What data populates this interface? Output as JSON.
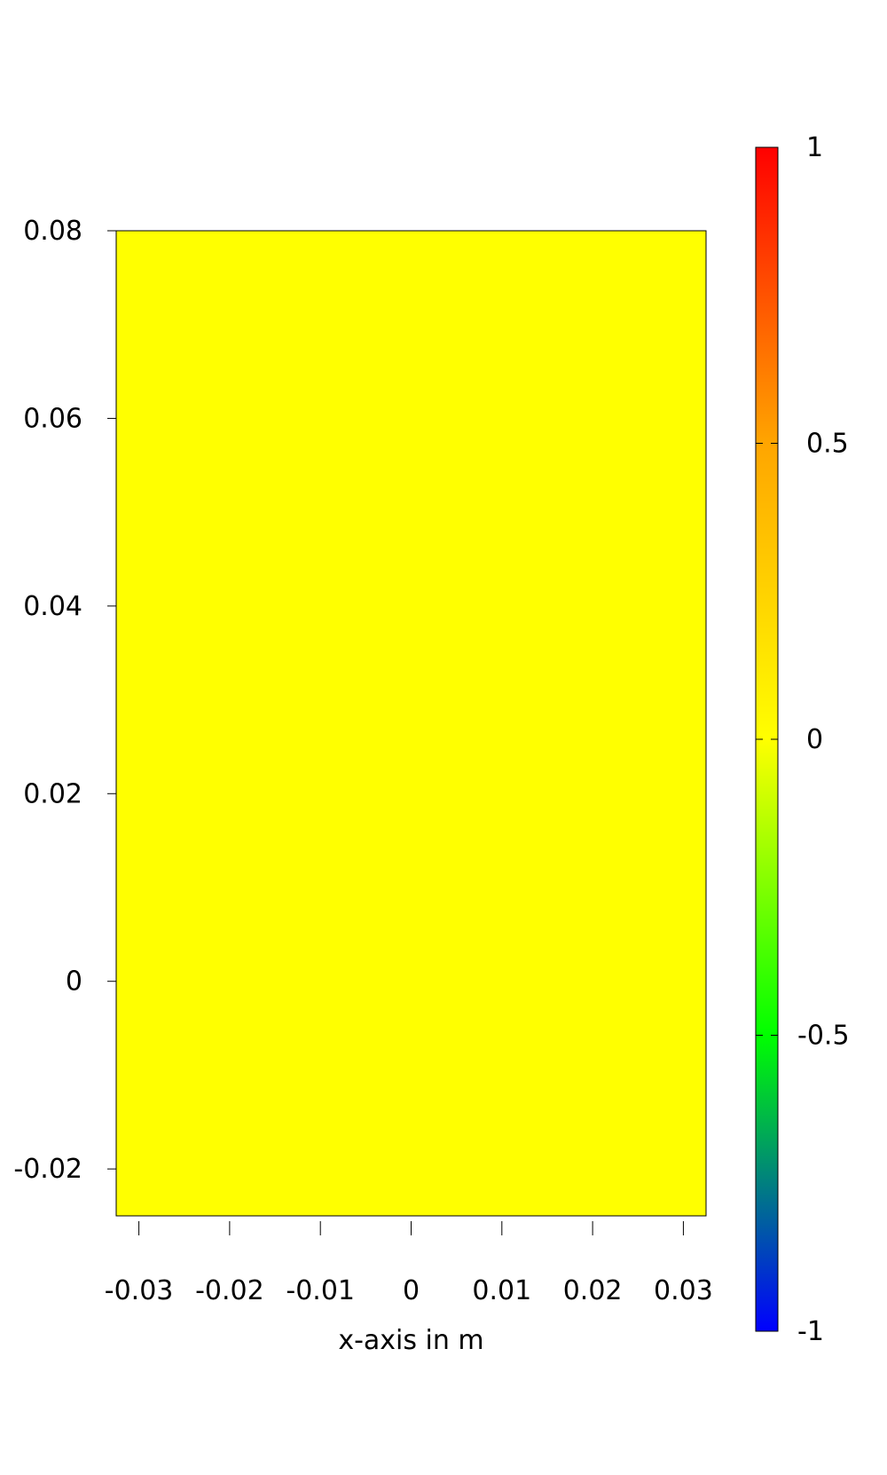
{
  "chart_data": {
    "type": "heatmap",
    "xlabel": "x-axis in m",
    "ylabel": "",
    "title": "",
    "xlim": [
      -0.0325,
      0.0325
    ],
    "ylim": [
      -0.025,
      0.08
    ],
    "x_ticks": [
      {
        "value": -0.03,
        "label": "-0.03"
      },
      {
        "value": -0.02,
        "label": "-0.02"
      },
      {
        "value": -0.01,
        "label": "-0.01"
      },
      {
        "value": 0,
        "label": "0"
      },
      {
        "value": 0.01,
        "label": "0.01"
      },
      {
        "value": 0.02,
        "label": "0.02"
      },
      {
        "value": 0.03,
        "label": "0.03"
      }
    ],
    "y_ticks": [
      {
        "value": -0.02,
        "label": "-0.02"
      },
      {
        "value": 0,
        "label": "0"
      },
      {
        "value": 0.02,
        "label": "0.02"
      },
      {
        "value": 0.04,
        "label": "0.04"
      },
      {
        "value": 0.06,
        "label": "0.06"
      },
      {
        "value": 0.08,
        "label": "0.08"
      }
    ],
    "field_value": 0,
    "grid": false,
    "colorbar": {
      "range": [
        -1,
        1
      ],
      "colors": [
        {
          "value": -1,
          "color": "#0000ff"
        },
        {
          "value": -0.5,
          "color": "#00ff00"
        },
        {
          "value": 0,
          "color": "#ffff00"
        },
        {
          "value": 0.5,
          "color": "#ffa500"
        },
        {
          "value": 1,
          "color": "#ff0000"
        }
      ],
      "ticks": [
        {
          "value": 1,
          "label": "1"
        },
        {
          "value": 0.5,
          "label": "0.5"
        },
        {
          "value": 0,
          "label": "0"
        },
        {
          "value": -0.5,
          "label": "-0.5"
        },
        {
          "value": -1,
          "label": "-1"
        }
      ]
    }
  }
}
